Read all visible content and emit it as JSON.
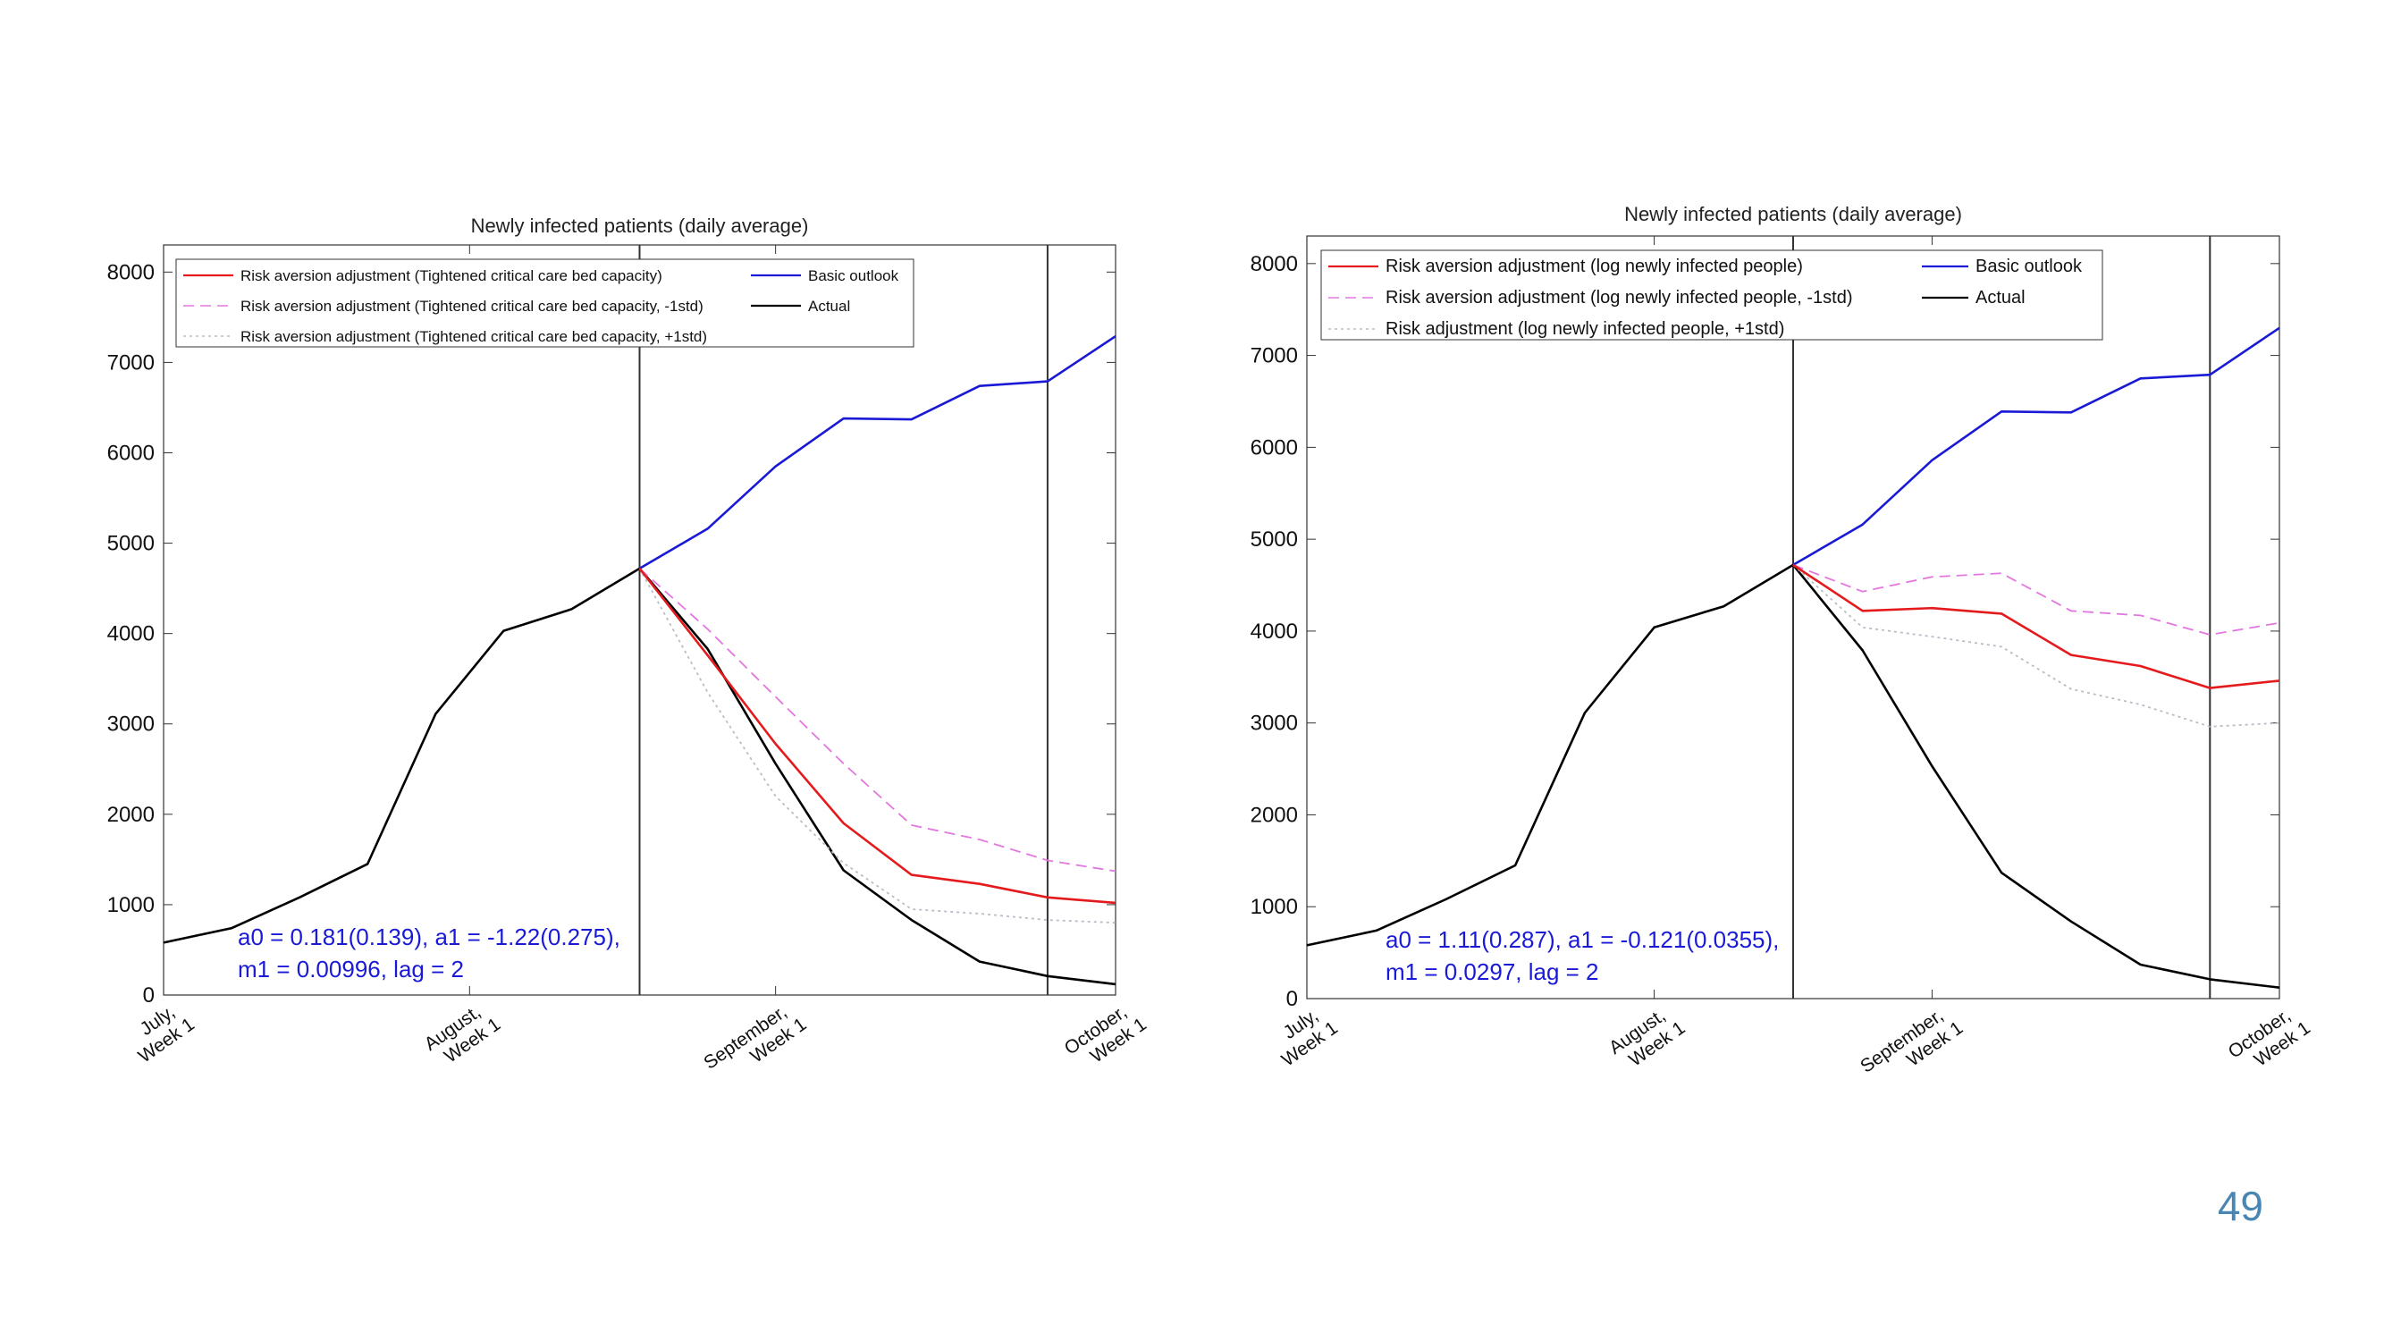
{
  "page_number": "49",
  "chart_data": [
    {
      "type": "line",
      "title": "Newly infected patients (daily average)",
      "xlabel": "",
      "ylabel": "",
      "ylim": [
        0,
        8300
      ],
      "xlim": [
        0,
        14
      ],
      "yticks": [
        0,
        1000,
        2000,
        3000,
        4000,
        5000,
        6000,
        7000,
        8000
      ],
      "xticks": [
        {
          "x": 0,
          "label": [
            "July,",
            "Week 1"
          ]
        },
        {
          "x": 4.5,
          "label": [
            "August,",
            "Week 1"
          ]
        },
        {
          "x": 9,
          "label": [
            "September,",
            "Week 1"
          ]
        },
        {
          "x": 14,
          "label": [
            "October,",
            "Week 1"
          ]
        }
      ],
      "vlines": [
        7,
        13
      ],
      "grid": false,
      "legend_position": "top-left",
      "annotation": [
        "a0 = 0.181(0.139), a1 = -1.22(0.275),",
        "m1 = 0.00996, lag = 2"
      ],
      "series": [
        {
          "name": "Risk aversion adjustment (Tightened critical care bed capacity)",
          "color": "#e41a1c",
          "style": "solid",
          "points": [
            [
              7,
              4720
            ],
            [
              8,
              3760
            ],
            [
              9,
              2780
            ],
            [
              10,
              1900
            ],
            [
              11,
              1330
            ],
            [
              12,
              1230
            ],
            [
              13,
              1080
            ],
            [
              14,
              1020
            ]
          ]
        },
        {
          "name": "Risk aversion adjustment (Tightened critical care bed capacity, -1std)",
          "color": "#e377e0",
          "style": "dashed",
          "points": [
            [
              7,
              4720
            ],
            [
              8,
              4050
            ],
            [
              9,
              3300
            ],
            [
              10,
              2560
            ],
            [
              11,
              1880
            ],
            [
              12,
              1720
            ],
            [
              13,
              1490
            ],
            [
              14,
              1370
            ]
          ]
        },
        {
          "name": "Risk aversion adjustment (Tightened critical care bed capacity, +1std)",
          "color": "#bcbcc8",
          "style": "dotted",
          "points": [
            [
              7,
              4720
            ],
            [
              8,
              3350
            ],
            [
              9,
              2200
            ],
            [
              10,
              1460
            ],
            [
              11,
              950
            ],
            [
              12,
              900
            ],
            [
              13,
              830
            ],
            [
              14,
              800
            ]
          ]
        },
        {
          "name": "Basic outlook",
          "color": "#1a1ad6",
          "style": "solid",
          "points": [
            [
              7,
              4720
            ],
            [
              8,
              5160
            ],
            [
              9,
              5850
            ],
            [
              10,
              6380
            ],
            [
              11,
              6370
            ],
            [
              12,
              6740
            ],
            [
              13,
              6790
            ],
            [
              14,
              7290
            ]
          ]
        },
        {
          "name": "Actual",
          "color": "#000000",
          "style": "solid",
          "points": [
            [
              0,
              580
            ],
            [
              1,
              740
            ],
            [
              2,
              1080
            ],
            [
              3,
              1450
            ],
            [
              4,
              3110
            ],
            [
              5,
              4030
            ],
            [
              6,
              4270
            ],
            [
              7,
              4720
            ],
            [
              8,
              3830
            ],
            [
              9,
              2560
            ],
            [
              10,
              1380
            ],
            [
              11,
              830
            ],
            [
              12,
              370
            ],
            [
              13,
              210
            ],
            [
              14,
              120
            ]
          ]
        }
      ],
      "legend_rows": [
        [
          0,
          3
        ],
        [
          1,
          4
        ],
        [
          2
        ]
      ]
    },
    {
      "type": "line",
      "title": "Newly infected patients (daily average)",
      "xlabel": "",
      "ylabel": "",
      "ylim": [
        0,
        8300
      ],
      "xlim": [
        0,
        14
      ],
      "yticks": [
        0,
        1000,
        2000,
        3000,
        4000,
        5000,
        6000,
        7000,
        8000
      ],
      "xticks": [
        {
          "x": 0,
          "label": [
            "July,",
            "Week 1"
          ]
        },
        {
          "x": 5,
          "label": [
            "August,",
            "Week 1"
          ]
        },
        {
          "x": 9,
          "label": [
            "September,",
            "Week 1"
          ]
        },
        {
          "x": 14,
          "label": [
            "October,",
            "Week 1"
          ]
        }
      ],
      "vlines": [
        7,
        13
      ],
      "grid": false,
      "legend_position": "top-left",
      "annotation": [
        "a0 = 1.11(0.287), a1 = -0.121(0.0355),",
        "m1 = 0.0297, lag = 2"
      ],
      "series": [
        {
          "name": "Risk aversion adjustment (log newly infected people)",
          "color": "#e41a1c",
          "style": "solid",
          "points": [
            [
              7,
              4720
            ],
            [
              8,
              4220
            ],
            [
              9,
              4250
            ],
            [
              10,
              4190
            ],
            [
              11,
              3740
            ],
            [
              12,
              3620
            ],
            [
              13,
              3380
            ],
            [
              14,
              3460
            ]
          ]
        },
        {
          "name": "Risk aversion adjustment (log newly infected people, -1std)",
          "color": "#e377e0",
          "style": "dashed",
          "points": [
            [
              7,
              4720
            ],
            [
              8,
              4430
            ],
            [
              9,
              4590
            ],
            [
              10,
              4630
            ],
            [
              11,
              4220
            ],
            [
              12,
              4170
            ],
            [
              13,
              3960
            ],
            [
              14,
              4090
            ]
          ]
        },
        {
          "name": "Risk adjustment (log newly infected people, +1std)",
          "color": "#bcbcc8",
          "style": "dotted",
          "points": [
            [
              7,
              4720
            ],
            [
              8,
              4040
            ],
            [
              9,
              3940
            ],
            [
              10,
              3830
            ],
            [
              11,
              3370
            ],
            [
              12,
              3200
            ],
            [
              13,
              2960
            ],
            [
              14,
              3000
            ]
          ]
        },
        {
          "name": "Basic outlook",
          "color": "#1a1ad6",
          "style": "solid",
          "points": [
            [
              7,
              4720
            ],
            [
              8,
              5160
            ],
            [
              9,
              5860
            ],
            [
              10,
              6390
            ],
            [
              11,
              6380
            ],
            [
              12,
              6750
            ],
            [
              13,
              6790
            ],
            [
              14,
              7300
            ]
          ]
        },
        {
          "name": "Actual",
          "color": "#000000",
          "style": "solid",
          "points": [
            [
              0,
              580
            ],
            [
              1,
              740
            ],
            [
              2,
              1080
            ],
            [
              3,
              1450
            ],
            [
              4,
              3110
            ],
            [
              5,
              4040
            ],
            [
              6,
              4270
            ],
            [
              7,
              4720
            ],
            [
              8,
              3790
            ],
            [
              9,
              2530
            ],
            [
              10,
              1370
            ],
            [
              11,
              840
            ],
            [
              12,
              370
            ],
            [
              13,
              210
            ],
            [
              14,
              120
            ]
          ]
        }
      ],
      "legend_rows": [
        [
          0,
          3
        ],
        [
          1,
          4
        ],
        [
          2
        ]
      ]
    }
  ]
}
